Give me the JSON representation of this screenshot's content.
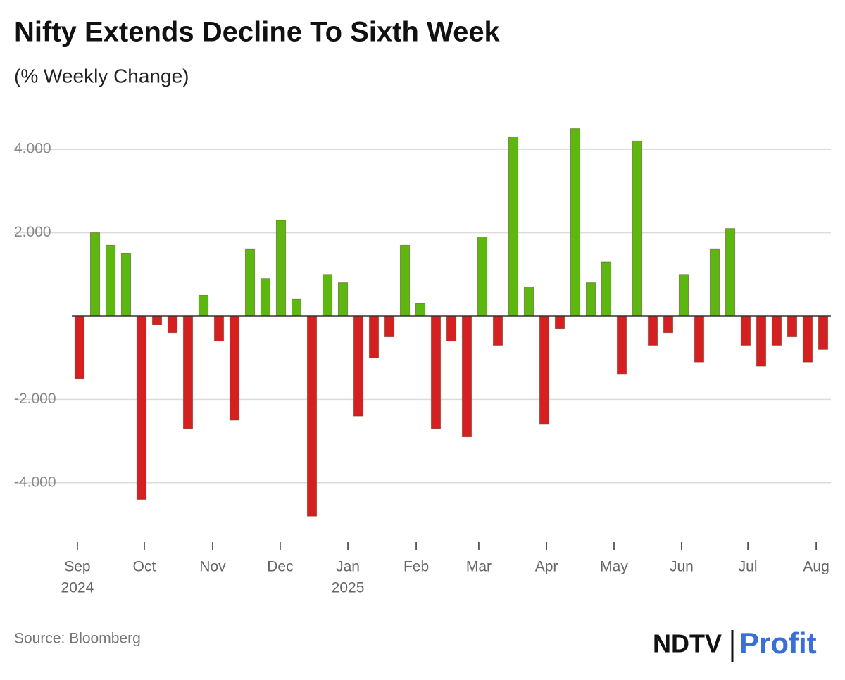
{
  "chart_data": {
    "type": "bar",
    "title": "Nifty Extends Decline To Sixth Week",
    "subtitle": "(% Weekly Change)",
    "source": "Source: Bloomberg",
    "brand": [
      "NDTV",
      "Profit"
    ],
    "values": [
      -1.5,
      2.0,
      1.7,
      1.5,
      -4.4,
      -0.2,
      -0.4,
      -2.7,
      0.5,
      -0.6,
      -2.5,
      1.6,
      0.9,
      2.3,
      0.4,
      -4.8,
      1.0,
      0.8,
      -2.4,
      -1.0,
      -0.5,
      1.7,
      0.3,
      -2.7,
      -0.6,
      -2.9,
      1.9,
      -0.7,
      4.3,
      0.7,
      -2.6,
      -0.3,
      4.5,
      0.8,
      1.3,
      -1.4,
      4.2,
      -0.7,
      -0.4,
      1.0,
      -1.1,
      1.6,
      2.1,
      -0.7,
      -1.2,
      -0.7,
      -0.5,
      -1.1,
      -0.8
    ],
    "colors": {
      "positive": "#5cb80e",
      "negative": "#d42020"
    },
    "ylim": [
      -5,
      5
    ],
    "yticks": [
      {
        "value": 4,
        "label": "4.000"
      },
      {
        "value": 2,
        "label": "2.000"
      },
      {
        "value": -2,
        "label": "-2.000"
      },
      {
        "value": -4,
        "label": "-4.000"
      }
    ],
    "xlim": [
      -0.5,
      48.5
    ],
    "xticks": [
      {
        "value": -0.14,
        "label": "Sep",
        "sublabel": "2024"
      },
      {
        "value": 4.18,
        "label": "Oct"
      },
      {
        "value": 8.59,
        "label": "Nov"
      },
      {
        "value": 12.95,
        "label": "Dec"
      },
      {
        "value": 17.32,
        "label": "Jan",
        "sublabel": "2025"
      },
      {
        "value": 21.73,
        "label": "Feb"
      },
      {
        "value": 25.77,
        "label": "Mar"
      },
      {
        "value": 30.14,
        "label": "Apr"
      },
      {
        "value": 34.5,
        "label": "May"
      },
      {
        "value": 38.86,
        "label": "Jun"
      },
      {
        "value": 43.14,
        "label": "Jul"
      },
      {
        "value": 47.55,
        "label": "Aug"
      }
    ],
    "grid": true
  }
}
